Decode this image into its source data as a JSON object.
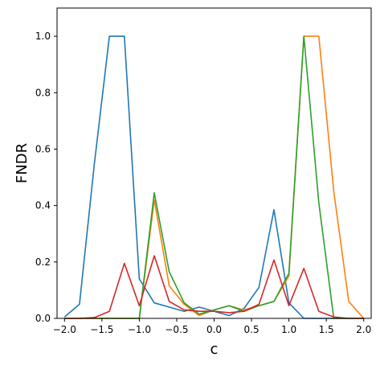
{
  "chart_data": {
    "type": "line",
    "title": "",
    "xlabel": "c",
    "ylabel": "FNDR",
    "xlim": [
      -2.1,
      2.1
    ],
    "ylim": [
      0,
      1.1
    ],
    "grid": false,
    "xticks": [
      -2.0,
      -1.5,
      -1.0,
      -0.5,
      0.0,
      0.5,
      1.0,
      1.5,
      2.0
    ],
    "xtick_labels": [
      "−2.0",
      "−1.5",
      "−1.0",
      "−0.5",
      "0.0",
      "0.5",
      "1.0",
      "1.5",
      "2.0"
    ],
    "yticks": [
      0.0,
      0.2,
      0.4,
      0.6,
      0.8,
      1.0
    ],
    "ytick_labels": [
      "0.0",
      "0.2",
      "0.4",
      "0.6",
      "0.8",
      "1.0"
    ],
    "x": [
      -2.0,
      -1.8,
      -1.6,
      -1.4,
      -1.2,
      -1.0,
      -0.8,
      -0.6,
      -0.4,
      -0.2,
      0.0,
      0.2,
      0.4,
      0.6,
      0.8,
      1.0,
      1.2,
      1.4,
      1.6,
      1.8,
      2.0
    ],
    "series": [
      {
        "color": "#1f77b4",
        "values": [
          0.005,
          0.05,
          0.55,
          1.0,
          1.0,
          0.14,
          0.055,
          0.04,
          0.025,
          0.04,
          0.025,
          0.01,
          0.035,
          0.11,
          0.385,
          0.055,
          0.0,
          0.0,
          0.0,
          0.0,
          0.0
        ]
      },
      {
        "color": "#ff7f0e",
        "values": [
          0.0,
          0.0,
          0.0,
          0.0,
          0.0,
          0.0,
          0.42,
          0.115,
          0.05,
          0.01,
          0.03,
          0.045,
          0.03,
          0.045,
          0.06,
          0.15,
          1.0,
          1.0,
          0.45,
          0.06,
          0.0
        ]
      },
      {
        "color": "#2ca02c",
        "values": [
          0.0,
          0.0,
          0.0,
          0.0,
          0.0,
          0.0,
          0.445,
          0.165,
          0.055,
          0.015,
          0.03,
          0.045,
          0.025,
          0.045,
          0.06,
          0.16,
          1.0,
          0.41,
          0.0,
          0.0,
          0.0
        ]
      },
      {
        "color": "#d62728",
        "values": [
          0.0,
          0.0,
          0.003,
          0.025,
          0.195,
          0.045,
          0.222,
          0.06,
          0.03,
          0.025,
          0.025,
          0.02,
          0.025,
          0.05,
          0.207,
          0.045,
          0.177,
          0.025,
          0.005,
          0.0,
          0.0
        ]
      }
    ]
  }
}
